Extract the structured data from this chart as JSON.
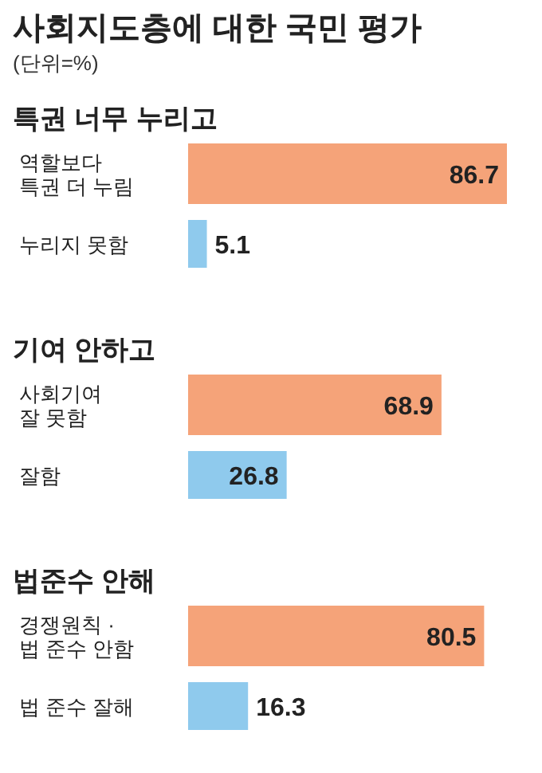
{
  "chart_data": [
    {
      "type": "other",
      "title": "사회지도층에 대한 국민 평가",
      "subtitle": "(단위=%)"
    },
    {
      "type": "bar",
      "orientation": "horizontal",
      "title": "특권 너무 누리고",
      "categories": [
        "역할보다\n특권 더 누림",
        "누리지 못함"
      ],
      "values": [
        86.7,
        5.1
      ],
      "colors": [
        "#f5a379",
        "#8fcaed"
      ],
      "data_labels": true
    },
    {
      "type": "bar",
      "orientation": "horizontal",
      "title": "기여 안하고",
      "categories": [
        "사회기여\n잘 못함",
        "잘함"
      ],
      "values": [
        68.9,
        26.8
      ],
      "colors": [
        "#f5a379",
        "#8fcaed"
      ],
      "data_labels": true
    },
    {
      "type": "bar",
      "orientation": "horizontal",
      "title": "법준수 안해",
      "categories": [
        "경쟁원칙 ·\n법 준수 안함",
        "법 준수 잘해"
      ],
      "values": [
        80.5,
        16.3
      ],
      "colors": [
        "#f5a379",
        "#8fcaed"
      ],
      "data_labels": true
    }
  ]
}
